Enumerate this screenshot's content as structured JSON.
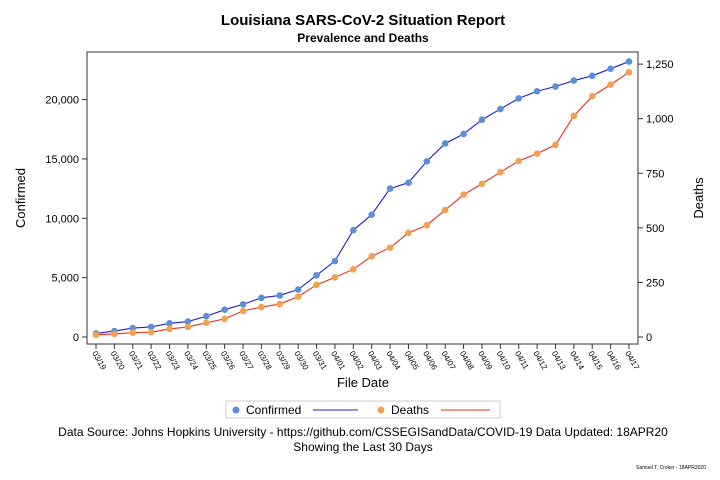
{
  "chart_data": {
    "type": "line",
    "title": "Louisiana SARS-CoV-2 Situation Report",
    "subtitle": "Prevalence and Deaths",
    "xlabel": "File Date",
    "ylabel_left": "Confirmed",
    "ylabel_right": "Deaths",
    "categories": [
      "03/19",
      "03/20",
      "03/21",
      "03/22",
      "03/23",
      "03/24",
      "03/25",
      "03/26",
      "03/27",
      "03/28",
      "03/29",
      "03/30",
      "03/31",
      "04/01",
      "04/02",
      "04/03",
      "04/04",
      "04/05",
      "04/06",
      "04/07",
      "04/08",
      "04/09",
      "04/10",
      "04/11",
      "04/12",
      "04/13",
      "04/14",
      "04/15",
      "04/16",
      "04/17"
    ],
    "y_left_ticks": [
      "0",
      "5,000",
      "10,000",
      "15,000",
      "20,000"
    ],
    "y_right_ticks": [
      "0",
      "250",
      "500",
      "750",
      "1,000",
      "1,250"
    ],
    "ylim_left": [
      0,
      23500
    ],
    "ylim_right": [
      0,
      1278
    ],
    "grid": false,
    "legend_position": "bottom",
    "series": [
      {
        "name": "Confirmed",
        "axis": "left",
        "color": "#1f1fcc",
        "marker_color": "#5b8fd6",
        "values": [
          300,
          500,
          750,
          850,
          1150,
          1300,
          1750,
          2300,
          2750,
          3300,
          3500,
          4000,
          5200,
          6400,
          9000,
          10300,
          12500,
          13000,
          14800,
          16300,
          17100,
          18300,
          19200,
          20100,
          20700,
          21100,
          21600,
          22000,
          22600,
          23200
        ]
      },
      {
        "name": "Deaths",
        "axis": "right",
        "color": "#e8301a",
        "marker_color": "#f5a050",
        "values": [
          10,
          14,
          20,
          22,
          37,
          46,
          65,
          83,
          119,
          137,
          151,
          185,
          239,
          273,
          310,
          370,
          409,
          477,
          512,
          582,
          652,
          702,
          755,
          806,
          840,
          880,
          1013,
          1103,
          1156,
          1213
        ]
      }
    ]
  },
  "legend": {
    "confirmed": "Confirmed",
    "deaths": "Deaths"
  },
  "footer": {
    "line1": "Data Source: Johns Hopkins University - https://github.com/CSSEGISandData/COVID-19 Data Updated: 18APR20",
    "line2": "Showing the Last 30 Days",
    "credit": "Samuel T. Croker - 18APR2020"
  }
}
